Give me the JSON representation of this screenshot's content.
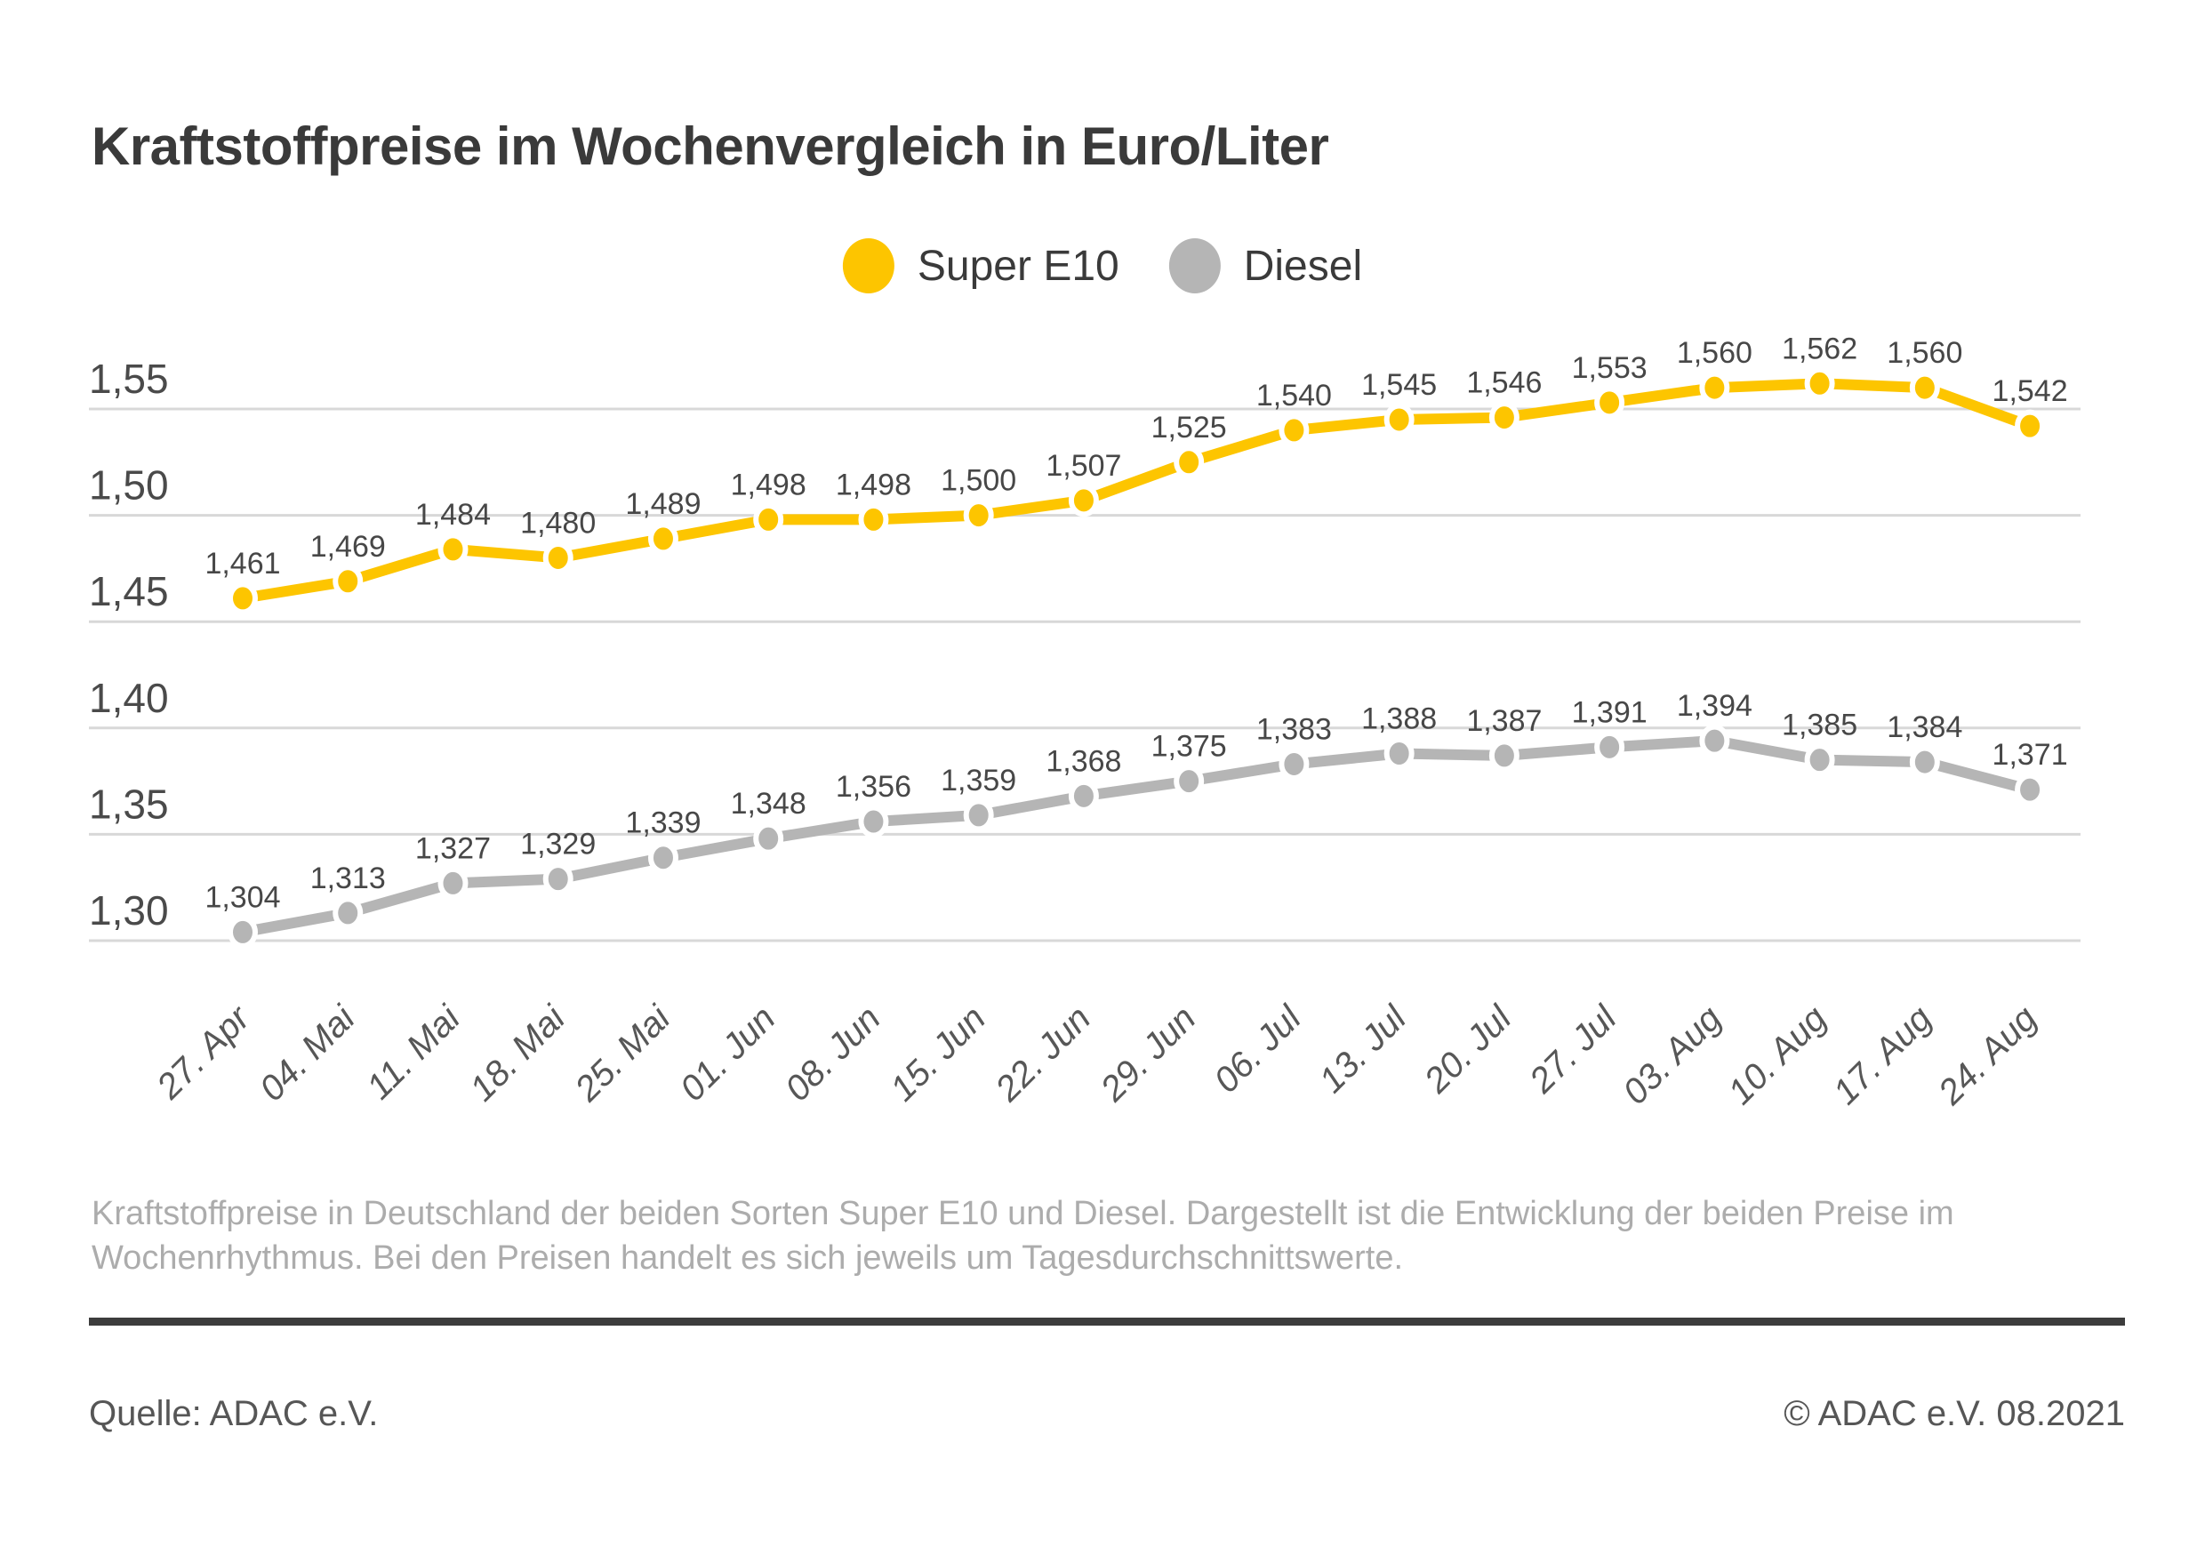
{
  "page": {
    "title": "Kraftstoffpreise im Wochenvergleich in Euro/Liter",
    "caption_line1": "Kraftstoffpreise in Deutschland der beiden Sorten Super E10 und Diesel. Dargestellt ist die Entwicklung der beiden Preise im",
    "caption_line2": "Wochenrhythmus. Bei den Preisen handelt es sich jeweils um Tagesdurchschnittswerte.",
    "footer": {
      "source": "Quelle: ADAC e.V.",
      "copyright": "© ADAC e.V. 08.2021"
    }
  },
  "legend": [
    {
      "label": "Super E10",
      "color": "#fdc500"
    },
    {
      "label": "Diesel",
      "color": "#b5b5b5"
    }
  ],
  "chart_data": {
    "type": "line",
    "title": "Kraftstoffpreise im Wochenvergleich in Euro/Liter",
    "unit": "Euro/Liter",
    "grid": true,
    "legend_position": "top-center",
    "point_labels_visible": true,
    "categories": [
      "27. Apr",
      "04. Mai",
      "11. Mai",
      "18. Mai",
      "25. Mai",
      "01. Jun",
      "08. Jun",
      "15. Jun",
      "22. Jun",
      "29. Jun",
      "06. Jul",
      "13. Jul",
      "20. Jul",
      "27. Jul",
      "03. Aug",
      "10. Aug",
      "17. Aug",
      "24. Aug"
    ],
    "series": [
      {
        "name": "Super E10",
        "color": "#fdc500",
        "values": [
          1.461,
          1.469,
          1.484,
          1.48,
          1.489,
          1.498,
          1.498,
          1.5,
          1.507,
          1.525,
          1.54,
          1.545,
          1.546,
          1.553,
          1.56,
          1.562,
          1.56,
          1.542
        ],
        "labels": [
          "1,461",
          "1,469",
          "1,484",
          "1,480",
          "1,489",
          "1,498",
          "1,498",
          "1,500",
          "1,507",
          "1,525",
          "1,540",
          "1,545",
          "1,546",
          "1,553",
          "1,560",
          "1,562",
          "1,560",
          "1,542"
        ]
      },
      {
        "name": "Diesel",
        "color": "#b5b5b5",
        "values": [
          1.304,
          1.313,
          1.327,
          1.329,
          1.339,
          1.348,
          1.356,
          1.359,
          1.368,
          1.375,
          1.383,
          1.388,
          1.387,
          1.391,
          1.394,
          1.385,
          1.384,
          1.371
        ],
        "labels": [
          "1,304",
          "1,313",
          "1,327",
          "1,329",
          "1,339",
          "1,348",
          "1,356",
          "1,359",
          "1,368",
          "1,375",
          "1,383",
          "1,388",
          "1,387",
          "1,391",
          "1,394",
          "1,385",
          "1,384",
          "1,371"
        ]
      }
    ],
    "y_axis": {
      "ticks": [
        1.55,
        1.5,
        1.45,
        1.4,
        1.35,
        1.3
      ],
      "tick_labels": [
        "1,55",
        "1,50",
        "1,45",
        "1,40",
        "1,35",
        "1,30"
      ],
      "range": [
        1.28,
        1.59
      ]
    }
  }
}
